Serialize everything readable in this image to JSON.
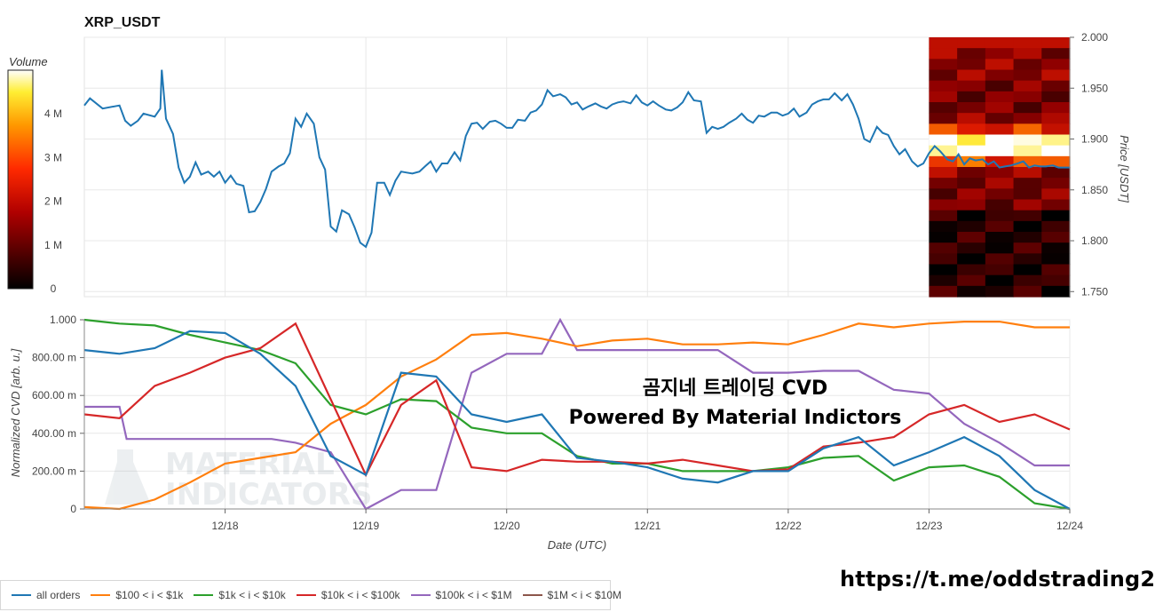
{
  "title": "XRP_USDT",
  "colorbar": {
    "label": "Volume",
    "ticks": [
      "4 M",
      "3 M",
      "2 M",
      "1 M",
      "0"
    ],
    "tick_values": [
      4,
      3,
      2,
      1,
      0
    ],
    "range": [
      0,
      5
    ]
  },
  "price_axis": {
    "label": "Price [USDT]",
    "ticks": [
      "2.000",
      "1.950",
      "1.900",
      "1.850",
      "1.800",
      "1.750"
    ],
    "tick_values": [
      2.0,
      1.95,
      1.9,
      1.85,
      1.8,
      1.75
    ]
  },
  "cvd_axis": {
    "label": "Normalized CVD [arb. u.]",
    "ticks": [
      "1.000",
      "800.00 m",
      "600.00 m",
      "400.00 m",
      "200.00 m",
      "0"
    ],
    "tick_values": [
      1.0,
      0.8,
      0.6,
      0.4,
      0.2,
      0
    ]
  },
  "x_axis": {
    "label": "Date (UTC)",
    "ticks": [
      "12/18",
      "12/19",
      "12/20",
      "12/21",
      "12/22",
      "12/23",
      "12/24"
    ],
    "tick_values": [
      1,
      2,
      3,
      4,
      5,
      6,
      7
    ],
    "range": [
      0,
      7
    ]
  },
  "watermark": {
    "line1": "곰지네 트레이딩 CVD",
    "line2": "Powered By Material Indictors",
    "logo_line1": "MATERIAL",
    "logo_line2": "INDICATORS"
  },
  "telegram_link": "https://t.me/oddstrading2",
  "colors": {
    "all_orders": "#1f77b4",
    "r100_1k": "#ff7f0e",
    "r1k_10k": "#2ca02c",
    "r10k_100k": "#d62728",
    "r100k_1m": "#9467bd",
    "r1m_10m": "#8c564b",
    "grid": "#e8e8e8",
    "heat_low": "#000000",
    "heat_mid": "#cc0000",
    "heat_high": "#ffffff"
  },
  "legend": [
    {
      "label": "all orders",
      "color": "#1f77b4"
    },
    {
      "label": "$100 < i < $1k",
      "color": "#ff7f0e"
    },
    {
      "label": "$1k < i < $10k",
      "color": "#2ca02c"
    },
    {
      "label": "$10k < i < $100k",
      "color": "#d62728"
    },
    {
      "label": "$100k < i < $1M",
      "color": "#9467bd"
    },
    {
      "label": "$1M < i < $10M",
      "color": "#8c564b"
    }
  ],
  "chart_data": [
    {
      "type": "line",
      "title": "XRP_USDT",
      "xlabel": "",
      "ylabel": "Price [USDT]",
      "xlim": [
        0,
        7
      ],
      "ylim": [
        1.745,
        2.0
      ],
      "series": [
        {
          "name": "price",
          "x": [
            0,
            0.04,
            0.13,
            0.25,
            0.29,
            0.33,
            0.38,
            0.42,
            0.5,
            0.54,
            0.55,
            0.58,
            0.63,
            0.67,
            0.71,
            0.75,
            0.79,
            0.83,
            0.88,
            0.92,
            0.96,
            1.0,
            1.04,
            1.08,
            1.13,
            1.17,
            1.21,
            1.25,
            1.29,
            1.33,
            1.38,
            1.42,
            1.46,
            1.5,
            1.54,
            1.58,
            1.63,
            1.67,
            1.71,
            1.75,
            1.79,
            1.83,
            1.88,
            1.92,
            1.96,
            2.0,
            2.04,
            2.08,
            2.13,
            2.17,
            2.21,
            2.25,
            2.29,
            2.33,
            2.38,
            2.42,
            2.46,
            2.5,
            2.54,
            2.58,
            2.63,
            2.67,
            2.71,
            2.75,
            2.79,
            2.83,
            2.88,
            2.92,
            2.96,
            3.0,
            3.04,
            3.08,
            3.13,
            3.17,
            3.21,
            3.25,
            3.29,
            3.33,
            3.38,
            3.42,
            3.46,
            3.5,
            3.54,
            3.58,
            3.63,
            3.67,
            3.71,
            3.75,
            3.79,
            3.83,
            3.88,
            3.92,
            3.96,
            4.0,
            4.04,
            4.08,
            4.13,
            4.17,
            4.21,
            4.25,
            4.29,
            4.33,
            4.38,
            4.42,
            4.46,
            4.5,
            4.54,
            4.58,
            4.63,
            4.67,
            4.71,
            4.75,
            4.79,
            4.83,
            4.88,
            4.92,
            4.96,
            5.0,
            5.04,
            5.08,
            5.13,
            5.17,
            5.21,
            5.25,
            5.29,
            5.33,
            5.38,
            5.42,
            5.46,
            5.5,
            5.54,
            5.58,
            5.63,
            5.67,
            5.71,
            5.75,
            5.79,
            5.83,
            5.88,
            5.92,
            5.96,
            6.0,
            6.04,
            6.08,
            6.13,
            6.17,
            6.21,
            6.25,
            6.29,
            6.33,
            6.38,
            6.42,
            6.46,
            6.5,
            6.54,
            6.58,
            6.63,
            6.67,
            6.71,
            6.75,
            6.79,
            6.83,
            6.88,
            6.92,
            6.96,
            7.0
          ],
          "values": [
            1.933,
            1.94,
            1.93,
            1.933,
            1.918,
            1.913,
            1.918,
            1.925,
            1.922,
            1.93,
            1.968,
            1.92,
            1.905,
            1.872,
            1.857,
            1.863,
            1.877,
            1.865,
            1.868,
            1.863,
            1.868,
            1.857,
            1.864,
            1.856,
            1.854,
            1.828,
            1.829,
            1.838,
            1.851,
            1.868,
            1.873,
            1.876,
            1.886,
            1.92,
            1.912,
            1.925,
            1.915,
            1.882,
            1.87,
            1.814,
            1.809,
            1.83,
            1.826,
            1.813,
            1.798,
            1.794,
            1.808,
            1.857,
            1.857,
            1.845,
            1.859,
            1.868,
            1.867,
            1.866,
            1.868,
            1.873,
            1.878,
            1.868,
            1.876,
            1.876,
            1.887,
            1.879,
            1.903,
            1.915,
            1.916,
            1.91,
            1.917,
            1.918,
            1.915,
            1.911,
            1.911,
            1.919,
            1.918,
            1.926,
            1.928,
            1.934,
            1.948,
            1.942,
            1.944,
            1.941,
            1.934,
            1.936,
            1.929,
            1.932,
            1.935,
            1.932,
            1.93,
            1.934,
            1.936,
            1.937,
            1.935,
            1.943,
            1.936,
            1.933,
            1.937,
            1.933,
            1.929,
            1.928,
            1.931,
            1.936,
            1.946,
            1.938,
            1.937,
            1.906,
            1.912,
            1.91,
            1.912,
            1.916,
            1.92,
            1.925,
            1.919,
            1.916,
            1.923,
            1.922,
            1.926,
            1.926,
            1.923,
            1.925,
            1.93,
            1.922,
            1.926,
            1.934,
            1.937,
            1.939,
            1.939,
            1.945,
            1.938,
            1.944,
            1.934,
            1.92,
            1.9,
            1.897,
            1.912,
            1.906,
            1.904,
            1.893,
            1.885,
            1.89,
            1.878,
            1.873,
            1.876,
            1.886,
            1.893,
            1.888,
            1.88,
            1.878,
            1.885,
            1.875,
            1.881,
            1.879,
            1.88,
            1.875,
            1.878,
            1.872,
            1.873,
            1.874,
            1.876,
            1.878,
            1.872,
            1.874,
            1.873,
            1.873,
            1.874,
            1.872,
            1.872,
            1.872
          ]
        }
      ],
      "heatmap": {
        "x_range": [
          6.0,
          7.0
        ],
        "y_range": [
          1.745,
          2.0
        ],
        "rows": 24,
        "cols": 5,
        "intensity_note": "brightest band near 1.880-1.910 USDT"
      }
    },
    {
      "type": "line",
      "title": "",
      "xlabel": "Date (UTC)",
      "ylabel": "Normalized CVD [arb. u.]",
      "xlim": [
        0,
        7
      ],
      "ylim": [
        0,
        1.0
      ],
      "series": [
        {
          "name": "all orders",
          "x": [
            0,
            0.25,
            0.5,
            0.75,
            1.0,
            1.25,
            1.5,
            1.75,
            2.0,
            2.25,
            2.5,
            2.75,
            3.0,
            3.25,
            3.5,
            3.75,
            4.0,
            4.25,
            4.5,
            4.75,
            5.0,
            5.25,
            5.5,
            5.75,
            6.0,
            6.25,
            6.5,
            6.75,
            7.0
          ],
          "values": [
            0.84,
            0.82,
            0.85,
            0.94,
            0.93,
            0.82,
            0.65,
            0.28,
            0.18,
            0.72,
            0.7,
            0.5,
            0.46,
            0.5,
            0.27,
            0.25,
            0.22,
            0.16,
            0.14,
            0.2,
            0.2,
            0.32,
            0.38,
            0.23,
            0.3,
            0.38,
            0.28,
            0.1,
            0.0
          ]
        },
        {
          "name": "$100 < i < $1k",
          "x": [
            0,
            0.25,
            0.5,
            0.75,
            1.0,
            1.25,
            1.5,
            1.75,
            2.0,
            2.25,
            2.5,
            2.75,
            3.0,
            3.25,
            3.5,
            3.75,
            4.0,
            4.25,
            4.5,
            4.75,
            5.0,
            5.25,
            5.5,
            5.75,
            6.0,
            6.25,
            6.5,
            6.75,
            7.0
          ],
          "values": [
            0.01,
            0.0,
            0.05,
            0.14,
            0.24,
            0.27,
            0.3,
            0.45,
            0.55,
            0.7,
            0.79,
            0.92,
            0.93,
            0.9,
            0.86,
            0.89,
            0.9,
            0.87,
            0.87,
            0.88,
            0.87,
            0.92,
            0.98,
            0.96,
            0.98,
            0.99,
            0.99,
            0.96,
            0.96
          ]
        },
        {
          "name": "$1k < i < $10k",
          "x": [
            0,
            0.25,
            0.5,
            0.75,
            1.0,
            1.25,
            1.5,
            1.75,
            2.0,
            2.25,
            2.5,
            2.75,
            3.0,
            3.25,
            3.5,
            3.75,
            4.0,
            4.25,
            4.5,
            4.75,
            5.0,
            5.25,
            5.5,
            5.75,
            6.0,
            6.25,
            6.5,
            6.75,
            7.0
          ],
          "values": [
            1.0,
            0.98,
            0.97,
            0.92,
            0.88,
            0.84,
            0.77,
            0.55,
            0.5,
            0.58,
            0.57,
            0.43,
            0.4,
            0.4,
            0.28,
            0.24,
            0.24,
            0.2,
            0.2,
            0.2,
            0.22,
            0.27,
            0.28,
            0.15,
            0.22,
            0.23,
            0.17,
            0.03,
            0.0
          ]
        },
        {
          "name": "$10k < i < $100k",
          "x": [
            0,
            0.25,
            0.5,
            0.75,
            1.0,
            1.25,
            1.5,
            1.75,
            2.0,
            2.25,
            2.5,
            2.75,
            3.0,
            3.25,
            3.5,
            3.75,
            4.0,
            4.25,
            4.5,
            4.75,
            5.0,
            5.25,
            5.5,
            5.75,
            6.0,
            6.25,
            6.5,
            6.75,
            7.0
          ],
          "values": [
            0.5,
            0.48,
            0.65,
            0.72,
            0.8,
            0.85,
            0.98,
            0.58,
            0.18,
            0.55,
            0.68,
            0.22,
            0.2,
            0.26,
            0.25,
            0.25,
            0.24,
            0.26,
            0.23,
            0.2,
            0.21,
            0.33,
            0.35,
            0.38,
            0.5,
            0.55,
            0.46,
            0.5,
            0.42
          ]
        },
        {
          "name": "$100k < i < $1M",
          "x": [
            0,
            0.25,
            0.3,
            0.5,
            0.75,
            1.0,
            1.25,
            1.33,
            1.5,
            1.75,
            2.0,
            2.25,
            2.5,
            2.75,
            3.0,
            3.25,
            3.38,
            3.5,
            3.75,
            4.0,
            4.25,
            4.5,
            4.75,
            5.0,
            5.25,
            5.5,
            5.75,
            6.0,
            6.25,
            6.5,
            6.75,
            7.0
          ],
          "values": [
            0.54,
            0.54,
            0.37,
            0.37,
            0.37,
            0.37,
            0.37,
            0.37,
            0.35,
            0.3,
            0.0,
            0.1,
            0.1,
            0.72,
            0.82,
            0.82,
            1.0,
            0.84,
            0.84,
            0.84,
            0.84,
            0.84,
            0.72,
            0.72,
            0.73,
            0.73,
            0.63,
            0.61,
            0.45,
            0.35,
            0.23,
            0.23
          ]
        },
        {
          "name": "$1M < i < $10M",
          "x": [],
          "values": []
        }
      ]
    }
  ]
}
